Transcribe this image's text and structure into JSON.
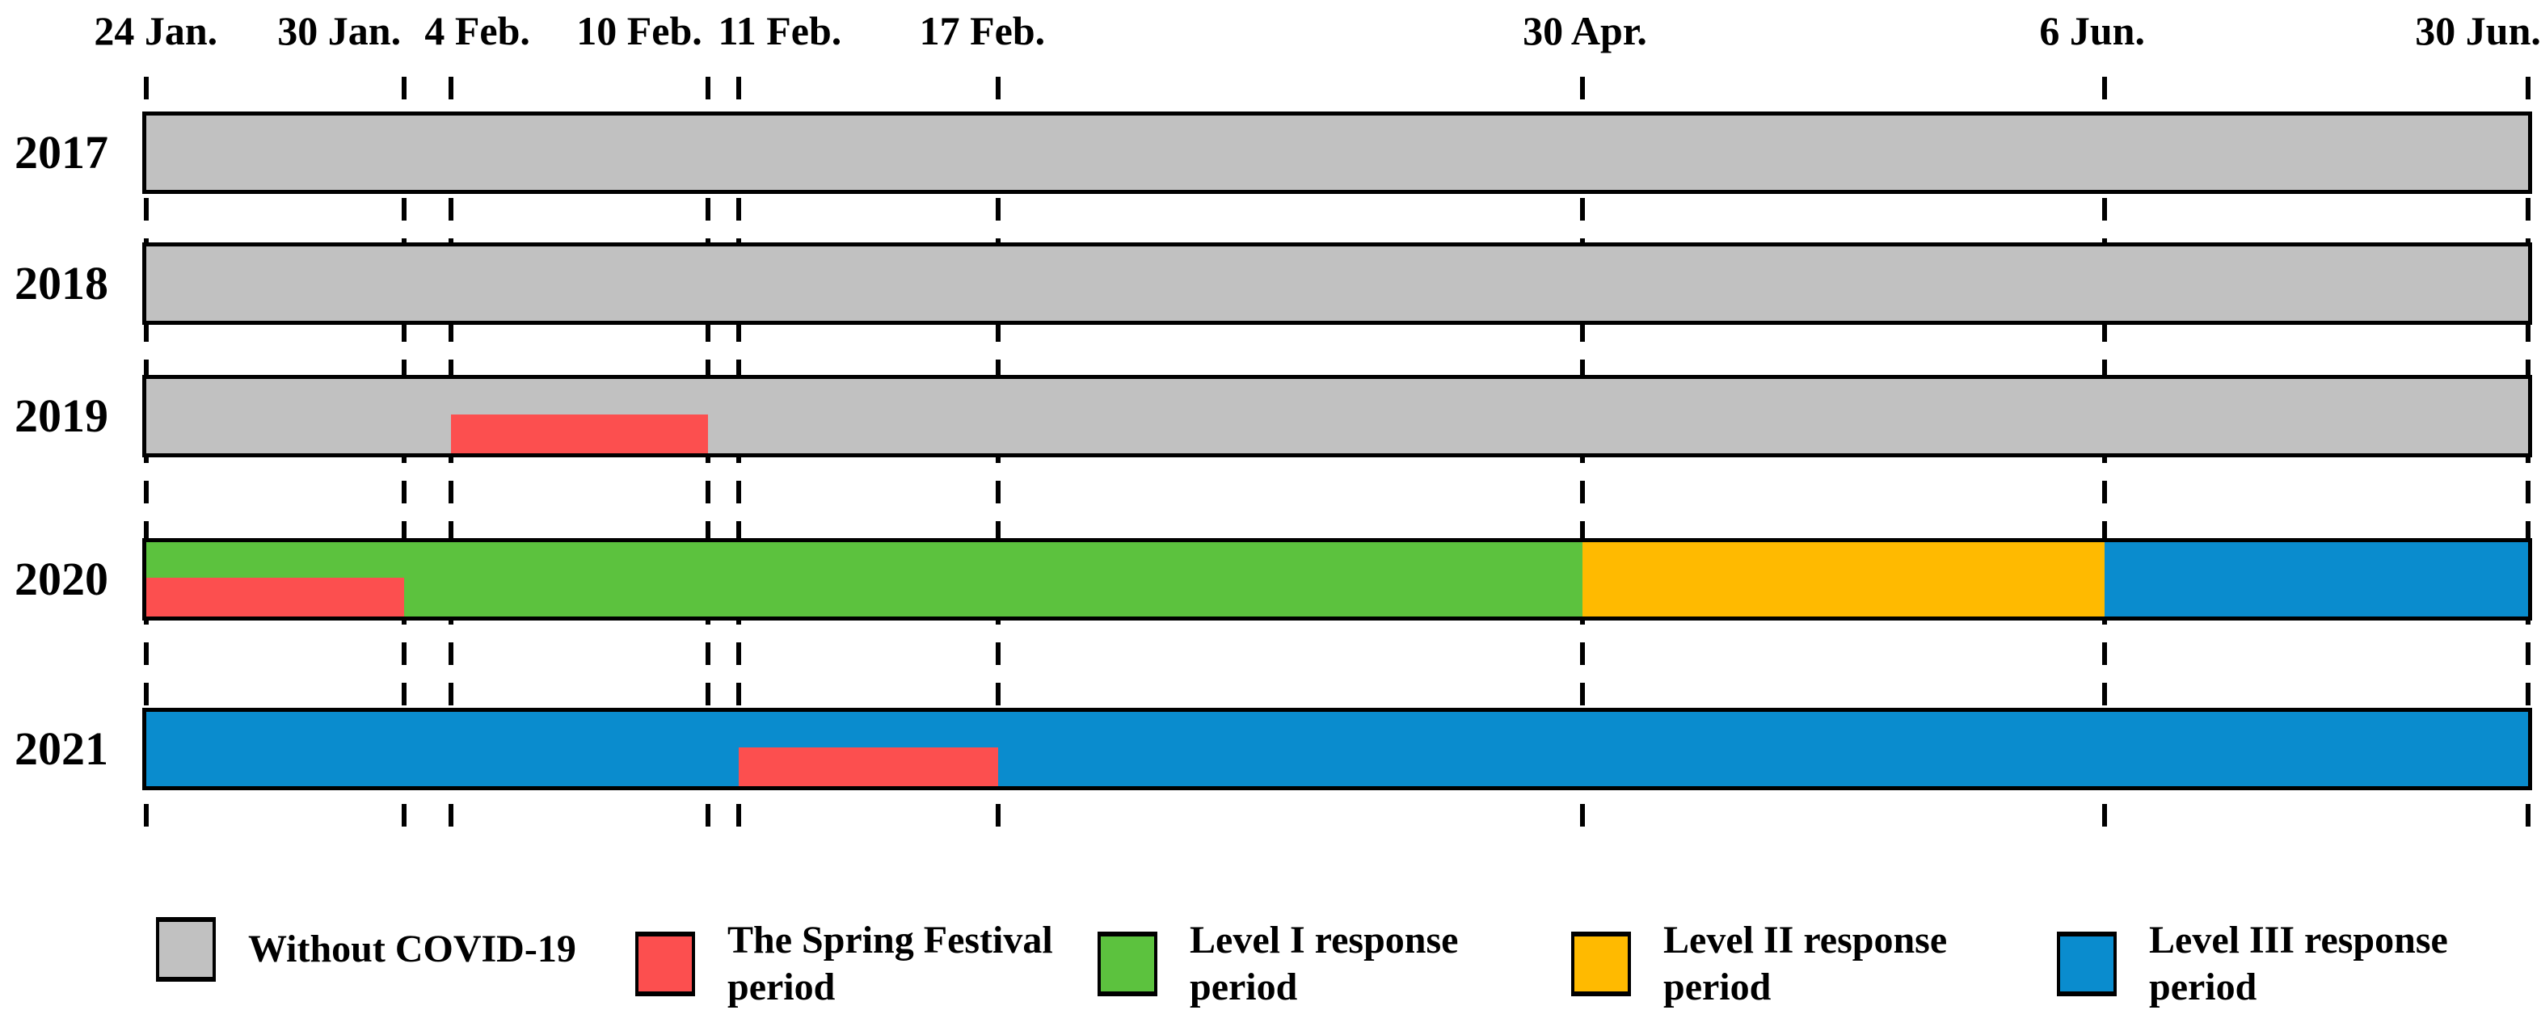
{
  "chart_data": {
    "type": "bar",
    "subtype": "gantt-timeline",
    "title": "",
    "xlabel": "",
    "ylabel": "",
    "grid": "vertical-dashed",
    "legend_position": "bottom",
    "x_axis": {
      "range": [
        "24 Jan.",
        "30 Jun."
      ],
      "scale": "schematic-nonlinear",
      "ticks": [
        {
          "label": "24 Jan.",
          "line_pct": 0,
          "label_pct": 0.4
        },
        {
          "label": "30 Jan.",
          "line_pct": 10.82,
          "label_pct": 8.1
        },
        {
          "label": "4 Feb.",
          "line_pct": 12.79,
          "label_pct": 13.9
        },
        {
          "label": "10 Feb.",
          "line_pct": 23.58,
          "label_pct": 20.7
        },
        {
          "label": "11 Feb.",
          "line_pct": 24.87,
          "label_pct": 26.6
        },
        {
          "label": "17 Feb.",
          "line_pct": 35.76,
          "label_pct": 35.1
        },
        {
          "label": "30 Apr.",
          "line_pct": 60.3,
          "label_pct": 60.4
        },
        {
          "label": "6 Jun.",
          "line_pct": 82.22,
          "label_pct": 81.7
        },
        {
          "label": "30 Jun.",
          "line_pct": 100,
          "label_pct": 97.9
        }
      ]
    },
    "colors": {
      "gray": "#c1c1c1",
      "red": "#fc4f4f",
      "green": "#5cc23e",
      "orange": "#ffba00",
      "blue": "#0a8cce"
    },
    "rows": [
      {
        "year": "2017",
        "segments": [
          {
            "period": "Without COVID-19",
            "color": "gray",
            "start": "24 Jan.",
            "end": "30 Jun.",
            "from_tick": 0,
            "to_tick": 8
          }
        ],
        "overlay": null
      },
      {
        "year": "2018",
        "segments": [
          {
            "period": "Without COVID-19",
            "color": "gray",
            "start": "24 Jan.",
            "end": "30 Jun.",
            "from_tick": 0,
            "to_tick": 8
          }
        ],
        "overlay": null
      },
      {
        "year": "2019",
        "segments": [
          {
            "period": "Without COVID-19",
            "color": "gray",
            "start": "24 Jan.",
            "end": "30 Jun.",
            "from_tick": 0,
            "to_tick": 8
          }
        ],
        "overlay": {
          "period": "The Spring Festival period",
          "color": "red",
          "start": "4 Feb.",
          "end": "10 Feb.",
          "from_tick": 2,
          "to_tick": 3,
          "coverage": "lower-half"
        }
      },
      {
        "year": "2020",
        "segments": [
          {
            "period": "Level I response period",
            "color": "green",
            "start": "24 Jan.",
            "end": "30 Apr.",
            "from_tick": 0,
            "to_tick": 6
          },
          {
            "period": "Level II response period",
            "color": "orange",
            "start": "30 Apr.",
            "end": "6 Jun.",
            "from_tick": 6,
            "to_tick": 7
          },
          {
            "period": "Level III response period",
            "color": "blue",
            "start": "6 Jun.",
            "end": "30 Jun.",
            "from_tick": 7,
            "to_tick": 8
          }
        ],
        "overlay": {
          "period": "The Spring Festival period",
          "color": "red",
          "start": "24 Jan.",
          "end": "30 Jan.",
          "from_tick": 0,
          "to_tick": 1,
          "coverage": "lower-half"
        }
      },
      {
        "year": "2021",
        "segments": [
          {
            "period": "Level III response period",
            "color": "blue",
            "start": "24 Jan.",
            "end": "30 Jun.",
            "from_tick": 0,
            "to_tick": 8
          }
        ],
        "overlay": {
          "period": "The Spring Festival period",
          "color": "red",
          "start": "11 Feb.",
          "end": "17 Feb.",
          "from_tick": 4,
          "to_tick": 5,
          "coverage": "lower-half"
        }
      }
    ],
    "legend": [
      {
        "label": "Without COVID-19",
        "color": "gray"
      },
      {
        "label": "The Spring Festival\nperiod",
        "color": "red"
      },
      {
        "label": "Level I response\nperiod",
        "color": "green"
      },
      {
        "label": "Level II response\nperiod",
        "color": "orange"
      },
      {
        "label": "Level III response\nperiod",
        "color": "blue"
      }
    ]
  }
}
